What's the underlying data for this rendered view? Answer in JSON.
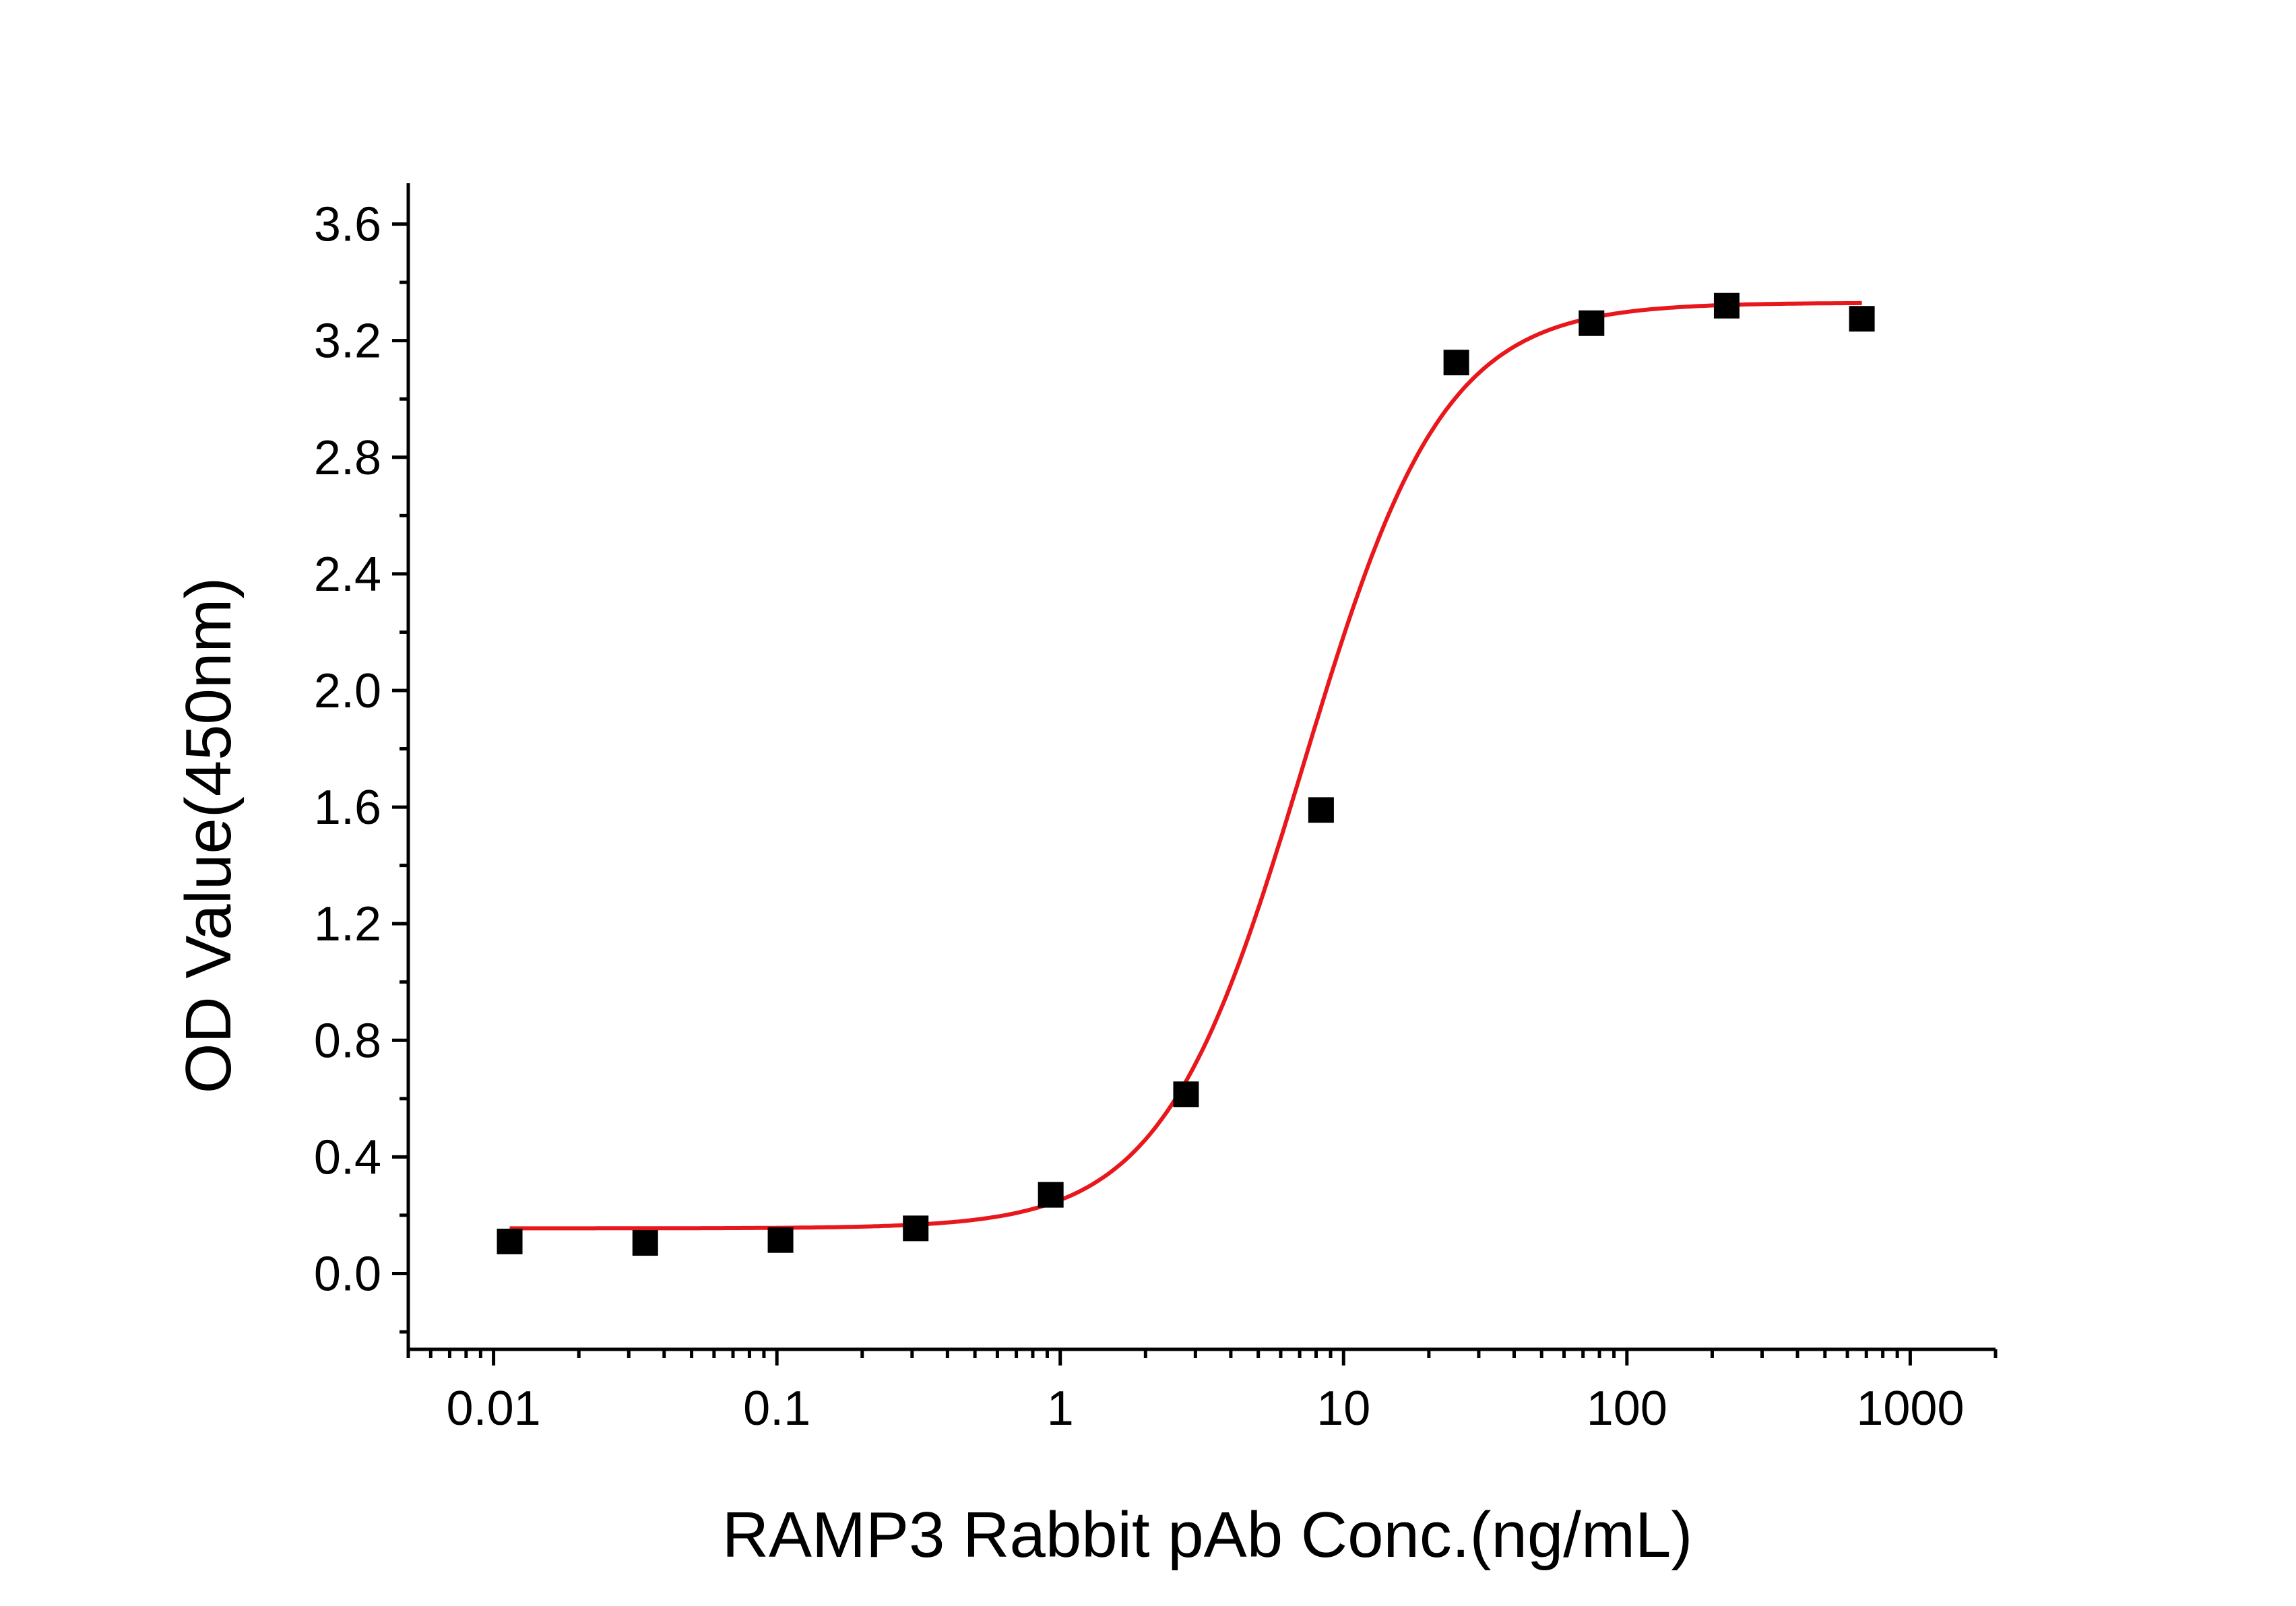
{
  "chart_data": {
    "type": "scatter",
    "title": "",
    "xlabel": "RAMP3 Rabbit pAb Conc.(ng/mL)",
    "ylabel": "OD Value(450nm)",
    "xscale": "log",
    "xlim": [
      0.005,
      2000
    ],
    "ylim": [
      -0.26,
      3.74
    ],
    "x_ticks": [
      0.01,
      0.1,
      1,
      10,
      100,
      1000
    ],
    "x_tick_labels": [
      "0.01",
      "0.1",
      "1",
      "10",
      "100",
      "1000"
    ],
    "y_ticks": [
      0.0,
      0.4,
      0.8,
      1.2,
      1.6,
      2.0,
      2.4,
      2.8,
      3.2,
      3.6
    ],
    "y_tick_labels": [
      "0.0",
      "0.4",
      "0.8",
      "1.2",
      "1.6",
      "2.0",
      "2.4",
      "2.8",
      "3.2",
      "3.6"
    ],
    "grid": false,
    "legend": "none",
    "series": [
      {
        "kind": "points",
        "marker": "square",
        "color": "#000000",
        "x": [
          0.0114,
          0.0343,
          0.103,
          0.309,
          0.926,
          2.78,
          8.33,
          25,
          75,
          225,
          675
        ],
        "y": [
          0.11,
          0.105,
          0.115,
          0.155,
          0.27,
          0.615,
          1.59,
          3.125,
          3.26,
          3.32,
          3.275
        ]
      },
      {
        "kind": "fit",
        "model": "4PL",
        "color": "#e8171c",
        "params": {
          "bottom": 0.155,
          "top": 3.33,
          "ec50": 7.2,
          "hill": 1.75
        },
        "x_range": [
          0.0114,
          675
        ]
      }
    ]
  }
}
